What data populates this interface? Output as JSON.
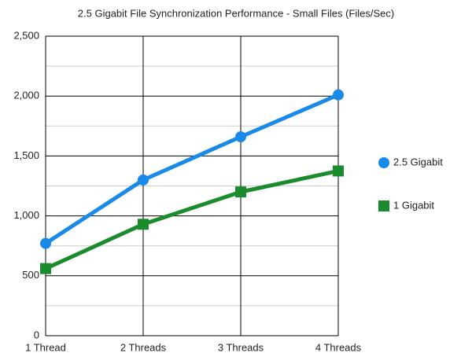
{
  "chart_data": {
    "type": "line",
    "title": "2.5 Gigabit File Synchronization Performance - Small Files (Files/Sec)",
    "categories": [
      "1 Thread",
      "2 Threads",
      "3 Threads",
      "4 Threads"
    ],
    "series": [
      {
        "name": "2.5 Gigabit",
        "color": "#1a8ae8",
        "marker": "circle",
        "values": [
          770,
          1300,
          1660,
          2010
        ]
      },
      {
        "name": "1 Gigabit",
        "color": "#1a8c2e",
        "marker": "square",
        "values": [
          560,
          930,
          1200,
          1375
        ]
      }
    ],
    "ylim": [
      0,
      2500
    ],
    "yticks": [
      0,
      500,
      {
        "value": 1000,
        "label": "1,000"
      },
      {
        "value": 1500,
        "label": "1,500"
      },
      {
        "value": 2000,
        "label": "2,000"
      },
      {
        "value": 2500,
        "label": "2,500"
      }
    ],
    "minor_yticks": [
      250,
      750,
      1250,
      1750,
      2250
    ],
    "grid": true,
    "legend": "right"
  }
}
